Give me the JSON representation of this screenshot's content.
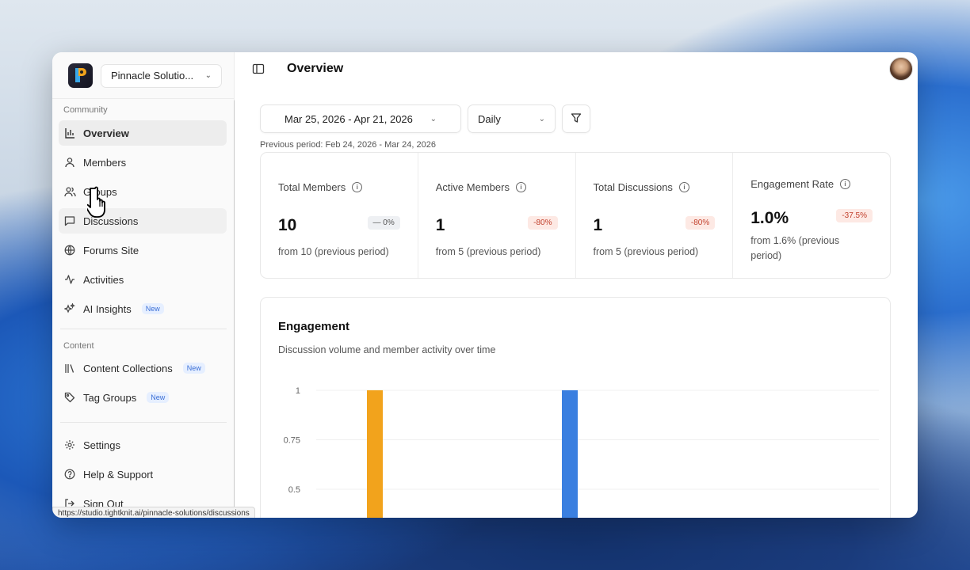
{
  "workspace": {
    "name": "Pinnacle Solutio..."
  },
  "header": {
    "title": "Overview"
  },
  "sidebar": {
    "community_label": "Community",
    "content_label": "Content",
    "new_badge": "New",
    "items": [
      {
        "label": "Overview",
        "icon": "bar-chart-icon"
      },
      {
        "label": "Members",
        "icon": "user-icon"
      },
      {
        "label": "Groups",
        "icon": "users-icon"
      },
      {
        "label": "Discussions",
        "icon": "chat-icon"
      },
      {
        "label": "Forums Site",
        "icon": "globe-icon"
      },
      {
        "label": "Activities",
        "icon": "activity-icon"
      },
      {
        "label": "AI Insights",
        "icon": "sparkles-icon"
      },
      {
        "label": "Content Collections",
        "icon": "library-icon"
      },
      {
        "label": "Tag Groups",
        "icon": "tag-icon"
      },
      {
        "label": "Settings",
        "icon": "gear-icon"
      },
      {
        "label": "Help & Support",
        "icon": "help-icon"
      },
      {
        "label": "Sign Out",
        "icon": "logout-icon"
      }
    ]
  },
  "status_bar": {
    "url": "https://studio.tightknit.ai/pinnacle-solutions/discussions"
  },
  "controls": {
    "date_range": "Mar 25, 2026 - Apr 21, 2026",
    "granularity": "Daily",
    "previous_period": "Previous period: Feb 24, 2026 - Mar 24, 2026"
  },
  "stats": [
    {
      "label": "Total Members",
      "value": "10",
      "change": "— 0%",
      "sub": "from 10 (previous period)"
    },
    {
      "label": "Active Members",
      "value": "1",
      "change": "-80%",
      "sub": "from 5 (previous period)"
    },
    {
      "label": "Total Discussions",
      "value": "1",
      "change": "-80%",
      "sub": "from 5 (previous period)"
    },
    {
      "label": "Engagement Rate",
      "value": "1.0%",
      "change": "-37.5%",
      "sub": "from 1.6% (previous period)"
    }
  ],
  "engagement": {
    "title": "Engagement",
    "subtitle": "Discussion volume and member activity over time"
  },
  "colors": {
    "orange_series": "#f2a31c",
    "blue_series": "#3a7fe0"
  },
  "chart_data": {
    "type": "bar",
    "yticks": [
      "1",
      "0.75",
      "0.5"
    ],
    "ylim": [
      0,
      1
    ],
    "grid": true,
    "series": [
      {
        "values": [
          1
        ]
      },
      {
        "values": [
          1
        ]
      }
    ]
  }
}
